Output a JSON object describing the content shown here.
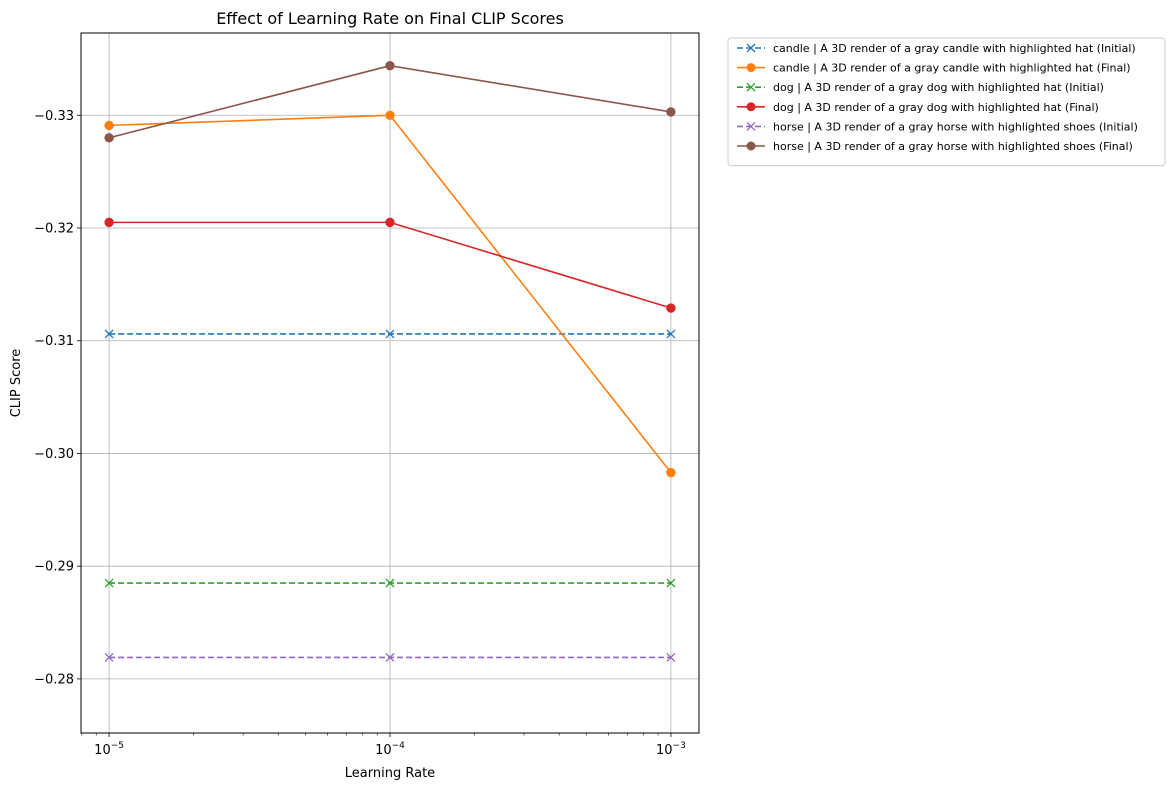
{
  "chart_data": {
    "type": "line",
    "title": "Effect of Learning Rate on Final CLIP Scores",
    "xlabel": "Learning Rate",
    "ylabel": "CLIP Score",
    "x_scale": "log",
    "x": [
      1e-05,
      0.0001,
      0.001
    ],
    "x_tick_labels": [
      {
        "base": "10",
        "exp": "−5"
      },
      {
        "base": "10",
        "exp": "−4"
      },
      {
        "base": "10",
        "exp": "−3"
      }
    ],
    "y_inverted": true,
    "ylim": [
      -0.2752,
      -0.3373
    ],
    "y_ticks": [
      -0.33,
      -0.32,
      -0.31,
      -0.3,
      -0.29,
      -0.28
    ],
    "y_tick_labels": [
      "−0.33",
      "−0.32",
      "−0.31",
      "−0.30",
      "−0.29",
      "−0.28"
    ],
    "grid": true,
    "legend_position": "outside-top-right",
    "series": [
      {
        "name": "candle | A 3D render of a gray candle with highlighted hat (Initial)",
        "color": "#1f77b4",
        "linestyle": "dashed",
        "marker": "x",
        "values": [
          -0.3106,
          -0.3106,
          -0.3106
        ]
      },
      {
        "name": "candle | A 3D render of a gray candle with highlighted hat (Final)",
        "color": "#ff7f0e",
        "linestyle": "solid",
        "marker": "o",
        "values": [
          -0.3291,
          -0.33,
          -0.2983
        ]
      },
      {
        "name": "dog | A 3D render of a gray dog with highlighted hat (Initial)",
        "color": "#2ca02c",
        "linestyle": "dashed",
        "marker": "x",
        "values": [
          -0.2885,
          -0.2885,
          -0.2885
        ]
      },
      {
        "name": "dog | A 3D render of a gray dog with highlighted hat (Final)",
        "color": "#d62728",
        "linestyle": "solid",
        "marker": "o",
        "values": [
          -0.3205,
          -0.3205,
          -0.3129
        ]
      },
      {
        "name": "horse | A 3D render of a gray horse with highlighted shoes (Initial)",
        "color": "#9467bd",
        "linestyle": "dashed",
        "marker": "x",
        "values": [
          -0.2819,
          -0.2819,
          -0.2819
        ]
      },
      {
        "name": "horse | A 3D render of a gray horse with highlighted shoes (Final)",
        "color": "#8c564b",
        "linestyle": "solid",
        "marker": "o",
        "values": [
          -0.328,
          -0.3344,
          -0.3303
        ]
      }
    ]
  }
}
